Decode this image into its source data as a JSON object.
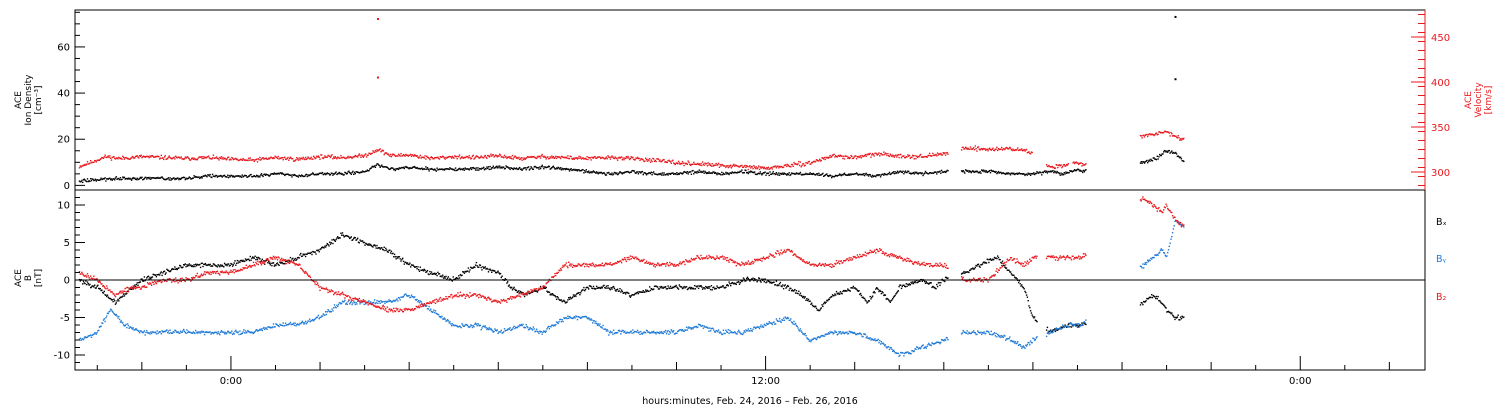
{
  "figure": {
    "xlabel": "hours:minutes, Feb. 24, 2016 – Feb. 26, 2016",
    "x_tick_labels": [
      "0:00",
      "12:00",
      "0:00"
    ],
    "x_range_hours": [
      -3.5,
      26.8
    ]
  },
  "colors": {
    "black": "#000000",
    "red": "#e8191e",
    "blue": "#1f7ad6"
  },
  "chart_data": [
    {
      "type": "scatter",
      "panel": "top",
      "ylabel_left": [
        "ACE",
        "Ion Density",
        "[cm⁻³]"
      ],
      "ylabel_right": [
        "ACE",
        "Velocity",
        "[km/s]"
      ],
      "ylim_left": [
        -2,
        76
      ],
      "ylim_right": [
        280,
        480
      ],
      "left_ticks": [
        0,
        20,
        40,
        60
      ],
      "right_ticks": [
        300,
        350,
        400,
        450
      ],
      "x_unit": "hours from Feb. 25, 2016 0:00",
      "series": [
        {
          "color": "#e8191e",
          "axis": "right",
          "gaps": [
            [
              16.1,
              16.4
            ],
            [
              18.0,
              18.3
            ],
            [
              18.8,
              18.9
            ],
            [
              19.2,
              20.4
            ]
          ],
          "x": [
            -3.4,
            -2.8,
            -2.5,
            -2.0,
            -1.5,
            -1.0,
            -0.5,
            0.0,
            0.5,
            1.0,
            1.5,
            2.0,
            2.5,
            3.0,
            3.3,
            3.6,
            4.0,
            4.5,
            5.0,
            5.5,
            6.0,
            6.5,
            7.0,
            7.5,
            8.0,
            8.5,
            9.0,
            9.5,
            10.0,
            10.5,
            11.0,
            11.5,
            12.0,
            12.5,
            13.0,
            13.5,
            14.0,
            14.5,
            15.0,
            15.5,
            16.0,
            16.5,
            17.0,
            17.5,
            17.9,
            18.4,
            18.7,
            19.0,
            19.1,
            20.5,
            20.8,
            21.0,
            21.2,
            21.4
          ],
          "y": [
            306,
            317,
            315,
            317,
            316,
            315,
            316,
            314,
            313,
            316,
            314,
            317,
            316,
            318,
            325,
            318,
            319,
            315,
            317,
            316,
            318,
            315,
            317,
            316,
            315,
            316,
            315,
            313,
            310,
            309,
            307,
            306,
            304,
            307,
            310,
            318,
            316,
            320,
            318,
            317,
            320,
            327,
            325,
            326,
            323,
            305,
            308,
            310,
            308,
            340,
            343,
            345,
            340,
            335
          ]
        },
        {
          "color": "#000000",
          "axis": "left",
          "gaps": [
            [
              16.1,
              16.4
            ],
            [
              19.2,
              20.4
            ]
          ],
          "x": [
            -3.4,
            -2.5,
            -2.0,
            -1.5,
            -1.0,
            -0.5,
            0.0,
            0.5,
            1.0,
            1.5,
            2.0,
            2.5,
            3.0,
            3.3,
            3.6,
            4.0,
            4.5,
            5.0,
            5.5,
            6.0,
            6.5,
            7.0,
            7.5,
            8.0,
            8.5,
            9.0,
            9.5,
            10.0,
            10.5,
            11.0,
            11.5,
            12.0,
            12.5,
            13.0,
            13.5,
            14.0,
            14.5,
            15.0,
            15.5,
            16.0,
            16.5,
            17.0,
            17.5,
            18.0,
            18.4,
            18.7,
            19.0,
            19.1,
            20.5,
            20.8,
            21.0,
            21.2,
            21.4
          ],
          "y": [
            2,
            3,
            3,
            3,
            3,
            4,
            4,
            4,
            5,
            4,
            5,
            5,
            6,
            9,
            7,
            8,
            7,
            7,
            7,
            8,
            7,
            8,
            7,
            6,
            5,
            6,
            5,
            5,
            6,
            5,
            6,
            5,
            5,
            5,
            4,
            5,
            4,
            6,
            5,
            6,
            6,
            6,
            5,
            5,
            6,
            5,
            7,
            6,
            10,
            12,
            15,
            14,
            10
          ]
        }
      ],
      "outliers": [
        {
          "color": "#e8191e",
          "x": 3.3,
          "y": 470
        },
        {
          "color": "#e8191e",
          "x": 3.3,
          "y": 405
        },
        {
          "color": "#000000",
          "x": 21.2,
          "y": 73
        },
        {
          "color": "#000000",
          "x": 21.2,
          "y": 46
        }
      ]
    },
    {
      "type": "scatter",
      "panel": "bottom",
      "ylabel_left": [
        "ACE",
        "B",
        "[nT]"
      ],
      "ylim": [
        -12,
        12
      ],
      "ticks": [
        -10,
        -5,
        0,
        5,
        10
      ],
      "zero_line": true,
      "legend": [
        "Bₓ",
        "Bᵧ",
        "B₂"
      ],
      "legend_placement": "right",
      "x_unit": "hours from Feb. 25, 2016 0:00",
      "series": [
        {
          "name": "Bₓ",
          "color": "#000000",
          "gaps": [
            [
              16.1,
              16.4
            ],
            [
              18.1,
              18.3
            ],
            [
              19.2,
              20.4
            ]
          ],
          "x": [
            -3.4,
            -3.0,
            -2.6,
            -2.2,
            -2.0,
            -1.5,
            -1.0,
            -0.5,
            0.0,
            0.5,
            1.0,
            1.5,
            2.0,
            2.5,
            3.0,
            3.5,
            4.0,
            4.5,
            5.0,
            5.5,
            6.0,
            6.3,
            6.6,
            7.0,
            7.5,
            8.0,
            8.5,
            9.0,
            9.5,
            10.0,
            10.5,
            11.0,
            11.5,
            12.0,
            12.5,
            12.8,
            13.2,
            13.5,
            14.0,
            14.3,
            14.5,
            14.8,
            15.0,
            15.5,
            15.8,
            16.0,
            16.5,
            16.8,
            17.2,
            17.5,
            17.8,
            18.0,
            18.4,
            18.8,
            19.1,
            20.5,
            20.7,
            20.9,
            21.0,
            21.2,
            21.4
          ],
          "y": [
            0,
            -1,
            -3,
            -1,
            0,
            1,
            2,
            2,
            2,
            3,
            2,
            3,
            4,
            6,
            5,
            4,
            2,
            1,
            0,
            2,
            1,
            -1,
            -2,
            -1,
            -3,
            -1,
            -1,
            -2,
            -1,
            -1,
            -1,
            -1,
            0,
            0,
            -1,
            -2,
            -4,
            -2,
            -1,
            -3,
            -1,
            -3,
            -1,
            0,
            -1,
            0,
            1,
            2,
            3,
            1,
            -1,
            -5,
            -7,
            -6,
            -6,
            -3,
            -2,
            -3,
            -4,
            -5,
            -5
          ]
        },
        {
          "name": "Bᵧ",
          "color": "#1f7ad6",
          "gaps": [
            [
              16.1,
              16.4
            ],
            [
              18.1,
              18.3
            ],
            [
              19.2,
              20.4
            ]
          ],
          "x": [
            -3.4,
            -3.0,
            -2.7,
            -2.4,
            -2.0,
            -1.5,
            -1.0,
            -0.5,
            0.0,
            0.5,
            1.0,
            1.5,
            2.0,
            2.5,
            3.0,
            3.5,
            4.0,
            4.5,
            5.0,
            5.5,
            6.0,
            6.5,
            7.0,
            7.5,
            8.0,
            8.5,
            9.0,
            9.5,
            10.0,
            10.5,
            11.0,
            11.5,
            12.0,
            12.5,
            13.0,
            13.5,
            14.0,
            14.5,
            15.0,
            15.5,
            16.0,
            16.5,
            17.0,
            17.5,
            17.8,
            18.0,
            18.4,
            18.8,
            19.1,
            20.5,
            20.7,
            20.9,
            21.0,
            21.2,
            21.4
          ],
          "y": [
            -8,
            -7,
            -4,
            -6,
            -7,
            -7,
            -7,
            -7,
            -7,
            -7,
            -6,
            -6,
            -5,
            -3,
            -3,
            -3,
            -2,
            -4,
            -6,
            -6,
            -7,
            -6,
            -7,
            -5,
            -5,
            -7,
            -7,
            -7,
            -7,
            -6,
            -7,
            -7,
            -6,
            -5,
            -8,
            -7,
            -7,
            -8,
            -10,
            -9,
            -8,
            -7,
            -7,
            -8,
            -9,
            -8,
            -7,
            -6,
            -6,
            2,
            3,
            4,
            3,
            8,
            7
          ]
        },
        {
          "name": "B₂",
          "color": "#e8191e",
          "gaps": [
            [
              16.1,
              16.4
            ],
            [
              18.1,
              18.3
            ],
            [
              19.2,
              20.4
            ]
          ],
          "x": [
            -3.4,
            -3.0,
            -2.6,
            -2.2,
            -2.0,
            -1.5,
            -1.0,
            -0.5,
            0.0,
            0.5,
            1.0,
            1.5,
            2.0,
            2.5,
            3.0,
            3.5,
            4.0,
            4.5,
            5.0,
            5.5,
            6.0,
            6.5,
            7.0,
            7.5,
            8.0,
            8.5,
            9.0,
            9.5,
            10.0,
            10.5,
            11.0,
            11.5,
            12.0,
            12.5,
            13.0,
            13.5,
            14.0,
            14.5,
            15.0,
            15.5,
            16.0,
            16.5,
            17.0,
            17.5,
            17.8,
            18.0,
            18.4,
            18.8,
            19.1,
            20.5,
            20.7,
            20.9,
            21.0,
            21.2,
            21.4
          ],
          "y": [
            1,
            0,
            -2,
            -1,
            -1,
            0,
            0,
            1,
            1,
            2,
            3,
            2,
            -1,
            -2,
            -3,
            -4,
            -4,
            -3,
            -2,
            -2,
            -3,
            -2,
            -1,
            2,
            2,
            2,
            3,
            2,
            2,
            3,
            3,
            2,
            3,
            4,
            2,
            2,
            3,
            4,
            3,
            2,
            2,
            0,
            0,
            3,
            2,
            3,
            3,
            3,
            3,
            11,
            10,
            9,
            10,
            8,
            7
          ]
        }
      ]
    }
  ]
}
